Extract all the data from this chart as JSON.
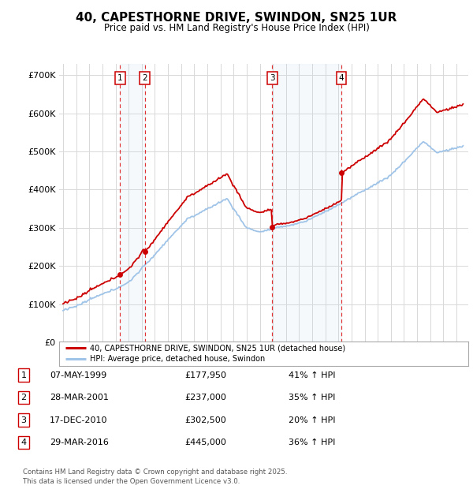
{
  "title": "40, CAPESTHORNE DRIVE, SWINDON, SN25 1UR",
  "subtitle": "Price paid vs. HM Land Registry's House Price Index (HPI)",
  "ylim": [
    0,
    730000
  ],
  "yticks": [
    0,
    100000,
    200000,
    300000,
    400000,
    500000,
    600000,
    700000
  ],
  "ytick_labels": [
    "£0",
    "£100K",
    "£200K",
    "£300K",
    "£400K",
    "£500K",
    "£600K",
    "£700K"
  ],
  "background_color": "#ffffff",
  "grid_color": "#d8d8d8",
  "purchase_color": "#cc0000",
  "hpi_color": "#a0c4e8",
  "transactions": [
    {
      "num": 1,
      "date": "07-MAY-1999",
      "year": 1999.35,
      "price": 177950,
      "pct": "41% ↑ HPI"
    },
    {
      "num": 2,
      "date": "28-MAR-2001",
      "year": 2001.23,
      "price": 237000,
      "pct": "35% ↑ HPI"
    },
    {
      "num": 3,
      "date": "17-DEC-2010",
      "year": 2010.95,
      "price": 302500,
      "pct": "20% ↑ HPI"
    },
    {
      "num": 4,
      "date": "29-MAR-2016",
      "year": 2016.23,
      "price": 445000,
      "pct": "36% ↑ HPI"
    }
  ],
  "legend_price_label": "40, CAPESTHORNE DRIVE, SWINDON, SN25 1UR (detached house)",
  "legend_hpi_label": "HPI: Average price, detached house, Swindon",
  "footer": "Contains HM Land Registry data © Crown copyright and database right 2025.\nThis data is licensed under the Open Government Licence v3.0.",
  "table_rows": [
    [
      "1",
      "07-MAY-1999",
      "£177,950",
      "41% ↑ HPI"
    ],
    [
      "2",
      "28-MAR-2001",
      "£237,000",
      "35% ↑ HPI"
    ],
    [
      "3",
      "17-DEC-2010",
      "£302,500",
      "20% ↑ HPI"
    ],
    [
      "4",
      "29-MAR-2016",
      "£445,000",
      "36% ↑ HPI"
    ]
  ],
  "xmin": 1994.7,
  "xmax": 2025.9
}
